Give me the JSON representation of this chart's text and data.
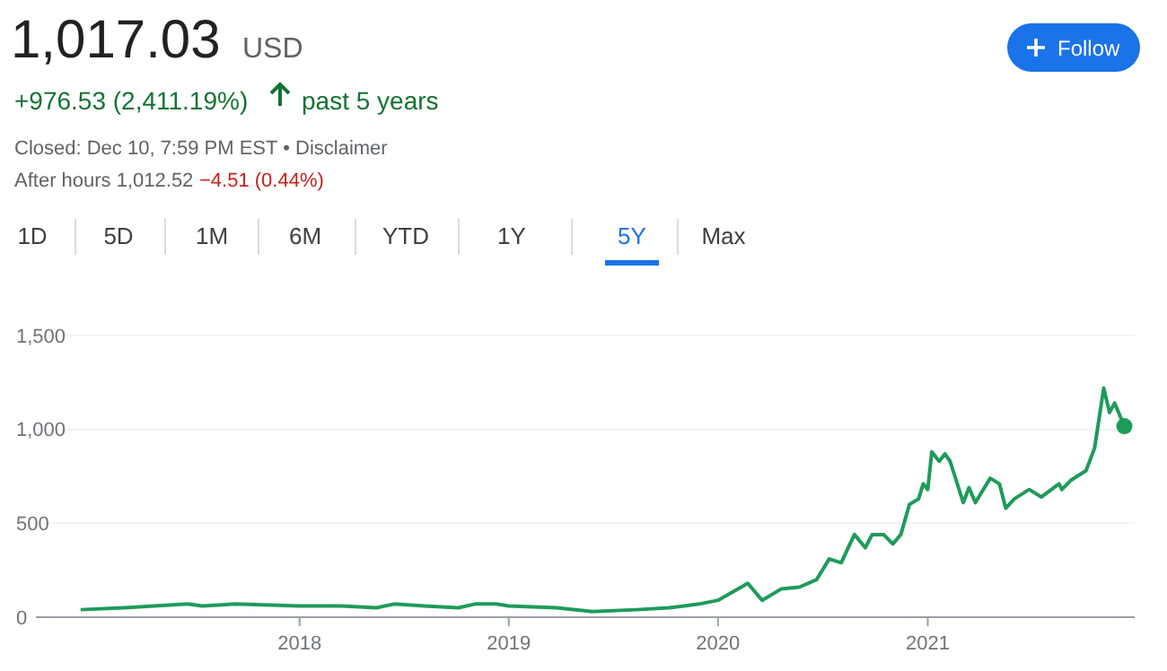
{
  "chart_data": {
    "type": "line",
    "title": "1,017.03",
    "subtitle": "USD",
    "annotations": [
      "+976.53 (2,411.19%)",
      "past 5 years",
      "Closed: Dec 10, 7:59 PM EST • Disclaimer",
      "After hours 1,012.52",
      "−4.51 (0.44%)",
      "Follow",
      "1D",
      "5D",
      "1M",
      "6M",
      "YTD",
      "1Y",
      "5Y",
      "Max"
    ],
    "x": [
      "2016-12-15",
      "2017-03-01",
      "2017-06-20",
      "2017-07-15",
      "2017-09-10",
      "2018-01-01",
      "2018-03-15",
      "2018-05-15",
      "2018-06-15",
      "2018-08-07",
      "2018-10-05",
      "2018-11-03",
      "2018-12-10",
      "2019-01-01",
      "2019-03-25",
      "2019-05-27",
      "2019-08-12",
      "2019-10-08",
      "2019-11-29",
      "2020-01-01",
      "2020-02-22",
      "2020-03-18",
      "2020-04-20",
      "2020-05-22",
      "2020-06-21",
      "2020-07-13",
      "2020-08-03",
      "2020-08-26",
      "2020-09-14",
      "2020-09-26",
      "2020-10-16",
      "2020-11-01",
      "2020-11-15",
      "2020-11-30",
      "2020-12-16",
      "2020-12-24",
      "2021-01-01",
      "2021-01-08",
      "2021-01-21",
      "2021-01-31",
      "2021-02-09",
      "2021-03-04",
      "2021-03-14",
      "2021-03-25",
      "2021-04-20",
      "2021-05-06",
      "2021-05-17",
      "2021-06-01",
      "2021-06-27",
      "2021-07-18",
      "2021-08-18",
      "2021-08-23",
      "2021-09-08",
      "2021-10-04",
      "2021-10-19",
      "2021-11-04",
      "2021-11-14",
      "2021-11-23",
      "2021-12-10"
    ],
    "series": [
      {
        "color": "#1e9b5a",
        "values": [
          40,
          50,
          70,
          60,
          70,
          60,
          60,
          50,
          70,
          60,
          50,
          70,
          70,
          60,
          50,
          30,
          40,
          50,
          70,
          90,
          180,
          90,
          150,
          160,
          200,
          310,
          290,
          440,
          370,
          440,
          440,
          390,
          440,
          600,
          630,
          710,
          680,
          880,
          830,
          870,
          830,
          610,
          690,
          610,
          740,
          710,
          580,
          630,
          680,
          640,
          710,
          680,
          730,
          780,
          900,
          1220,
          1090,
          1140,
          1017.03
        ]
      }
    ],
    "xlim": [
      "2016-09-28",
      "2021-12-28"
    ],
    "xticks": [
      "2018",
      "2019",
      "2020",
      "2021"
    ],
    "ylim": [
      0,
      1500
    ],
    "yticks": [
      0,
      500,
      {
        "value": 1000,
        "label": "1,000"
      },
      {
        "value": 1500,
        "label": "1,500"
      }
    ],
    "grid": "y",
    "line_style": "solid"
  }
}
